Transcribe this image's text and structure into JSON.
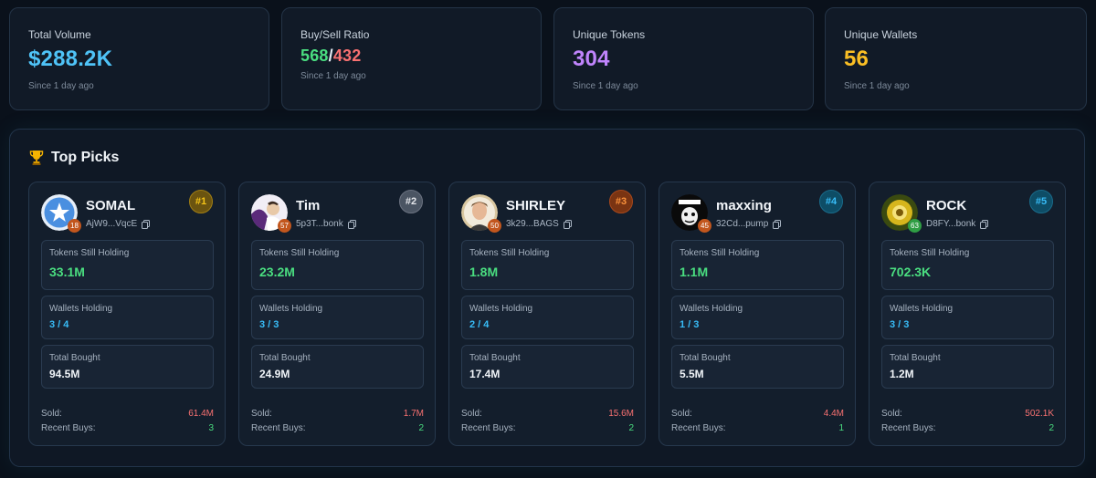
{
  "stats": {
    "total_volume": {
      "label": "Total Volume",
      "value": "$288.2K",
      "sub": "Since 1 day ago"
    },
    "buy_sell": {
      "label": "Buy/Sell Ratio",
      "buy": "568",
      "sep": "/",
      "sell": "432",
      "sub": "Since 1 day ago"
    },
    "unique_tokens": {
      "label": "Unique Tokens",
      "value": "304",
      "sub": "Since 1 day ago"
    },
    "unique_wallets": {
      "label": "Unique Wallets",
      "value": "56",
      "sub": "Since 1 day ago"
    }
  },
  "colors": {
    "volume": "#4fc3f7",
    "buy": "#4ade80",
    "sell": "#f87171",
    "tokens": "#c084fc",
    "wallets": "#fbbf24"
  },
  "top_picks": {
    "title": "Top Picks",
    "title_icon": "trophy-icon",
    "labels": {
      "holding": "Tokens Still Holding",
      "wallets": "Wallets Holding",
      "bought": "Total Bought",
      "sold": "Sold:",
      "recent": "Recent Buys:"
    },
    "picks": [
      {
        "name": "SOMAL",
        "address": "AjW9...VqcE",
        "avatar_badge": "18",
        "rank": "#1",
        "holding": "33.1M",
        "wallets": "3 / 4",
        "bought": "94.5M",
        "sold": "61.4M",
        "recent": "3"
      },
      {
        "name": "Tim",
        "address": "5p3T...bonk",
        "avatar_badge": "57",
        "rank": "#2",
        "holding": "23.2M",
        "wallets": "3 / 3",
        "bought": "24.9M",
        "sold": "1.7M",
        "recent": "2"
      },
      {
        "name": "SHIRLEY",
        "address": "3k29...BAGS",
        "avatar_badge": "50",
        "rank": "#3",
        "holding": "1.8M",
        "wallets": "2 / 4",
        "bought": "17.4M",
        "sold": "15.6M",
        "recent": "2"
      },
      {
        "name": "maxxing",
        "address": "32Cd...pump",
        "avatar_badge": "45",
        "rank": "#4",
        "holding": "1.1M",
        "wallets": "1 / 3",
        "bought": "5.5M",
        "sold": "4.4M",
        "recent": "1"
      },
      {
        "name": "ROCK",
        "address": "D8FY...bonk",
        "avatar_badge": "63",
        "rank": "#5",
        "holding": "702.3K",
        "wallets": "3 / 3",
        "bought": "1.2M",
        "sold": "502.1K",
        "recent": "2"
      }
    ]
  }
}
